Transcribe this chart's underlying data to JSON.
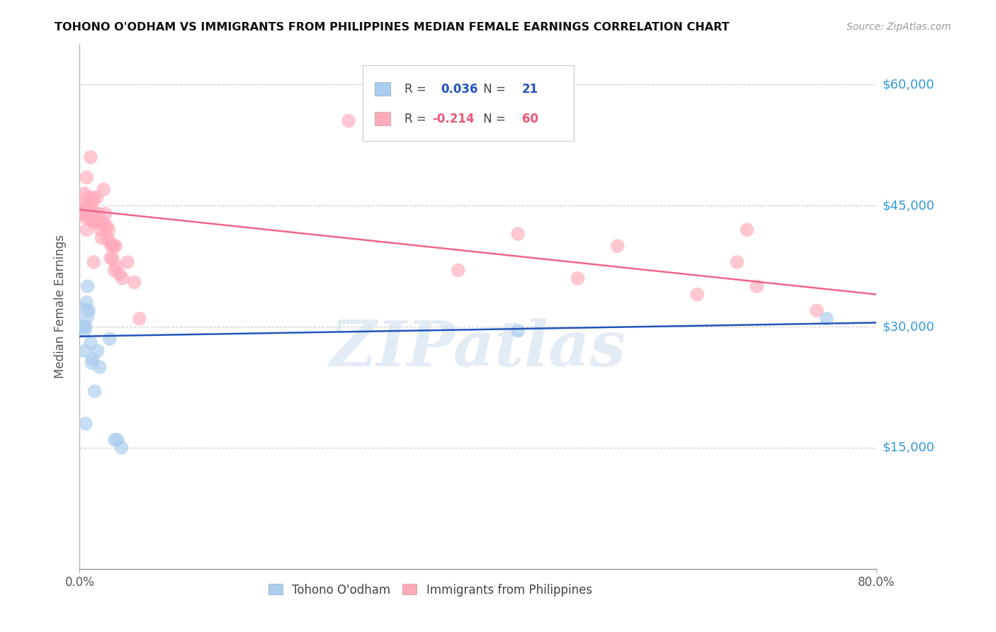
{
  "title": "TOHONO O'ODHAM VS IMMIGRANTS FROM PHILIPPINES MEDIAN FEMALE EARNINGS CORRELATION CHART",
  "source": "Source: ZipAtlas.com",
  "ylabel": "Median Female Earnings",
  "yticks": [
    0,
    15000,
    30000,
    45000,
    60000
  ],
  "ytick_labels": [
    "",
    "$15,000",
    "$30,000",
    "$45,000",
    "$60,000"
  ],
  "xlim": [
    0.0,
    0.8
  ],
  "ylim": [
    0,
    65000
  ],
  "watermark": "ZIPatlas",
  "blue_color": "#aaccee",
  "pink_color": "#ffaabb",
  "blue_line_color": "#2255bb",
  "pink_line_color": "#ee6688",
  "blue_scatter_x": [
    0.003,
    0.004,
    0.005,
    0.005,
    0.006,
    0.007,
    0.008,
    0.009,
    0.011,
    0.012,
    0.013,
    0.015,
    0.018,
    0.02,
    0.03,
    0.038,
    0.042,
    0.006,
    0.035,
    0.75,
    0.44
  ],
  "blue_scatter_y": [
    31500,
    30000,
    29500,
    27000,
    30000,
    33000,
    35000,
    32000,
    28000,
    25500,
    26000,
    22000,
    27000,
    25000,
    28500,
    16000,
    15000,
    18000,
    16000,
    31000,
    29500
  ],
  "blue_scatter_sizes": [
    600,
    200,
    200,
    200,
    200,
    200,
    200,
    200,
    200,
    200,
    200,
    200,
    200,
    200,
    200,
    200,
    200,
    200,
    200,
    200,
    200
  ],
  "pink_scatter_x": [
    0.003,
    0.004,
    0.005,
    0.005,
    0.006,
    0.006,
    0.007,
    0.007,
    0.007,
    0.008,
    0.008,
    0.009,
    0.01,
    0.01,
    0.011,
    0.011,
    0.012,
    0.012,
    0.013,
    0.013,
    0.014,
    0.014,
    0.015,
    0.016,
    0.017,
    0.018,
    0.019,
    0.02,
    0.021,
    0.022,
    0.023,
    0.024,
    0.025,
    0.026,
    0.027,
    0.028,
    0.029,
    0.03,
    0.031,
    0.032,
    0.033,
    0.034,
    0.035,
    0.036,
    0.037,
    0.04,
    0.043,
    0.048,
    0.055,
    0.06,
    0.27,
    0.38,
    0.44,
    0.5,
    0.54,
    0.62,
    0.66,
    0.67,
    0.68,
    0.74
  ],
  "pink_scatter_y": [
    44500,
    44000,
    45000,
    46500,
    44500,
    43500,
    44000,
    48500,
    42000,
    44500,
    46000,
    44000,
    43500,
    44500,
    45000,
    51000,
    43500,
    44000,
    45500,
    46000,
    43000,
    38000,
    43000,
    44000,
    46000,
    43000,
    44000,
    43000,
    42000,
    41000,
    43000,
    47000,
    42500,
    44000,
    42500,
    41000,
    42000,
    40500,
    38500,
    40000,
    38500,
    40000,
    37000,
    40000,
    37500,
    36500,
    36000,
    38000,
    35500,
    31000,
    55500,
    37000,
    41500,
    36000,
    40000,
    34000,
    38000,
    42000,
    35000,
    32000
  ],
  "pink_scatter_sizes": [
    300,
    200,
    200,
    200,
    200,
    200,
    200,
    200,
    200,
    200,
    200,
    200,
    200,
    200,
    200,
    200,
    200,
    200,
    200,
    200,
    200,
    200,
    200,
    200,
    200,
    200,
    200,
    200,
    200,
    200,
    200,
    200,
    200,
    200,
    200,
    200,
    200,
    200,
    200,
    200,
    200,
    200,
    200,
    200,
    200,
    200,
    200,
    200,
    200,
    200,
    200,
    200,
    200,
    200,
    200,
    200,
    200,
    200,
    200,
    200
  ],
  "blue_line_x": [
    0.0,
    0.8
  ],
  "blue_line_y": [
    28800,
    30500
  ],
  "pink_line_x": [
    0.0,
    0.8
  ],
  "pink_line_y": [
    44500,
    34000
  ],
  "legend_r_blue": "0.036",
  "legend_n_blue": "21",
  "legend_r_pink": "-0.214",
  "legend_n_pink": "60",
  "label_blue": "Tohono O'odham",
  "label_pink": "Immigrants from Philippines"
}
